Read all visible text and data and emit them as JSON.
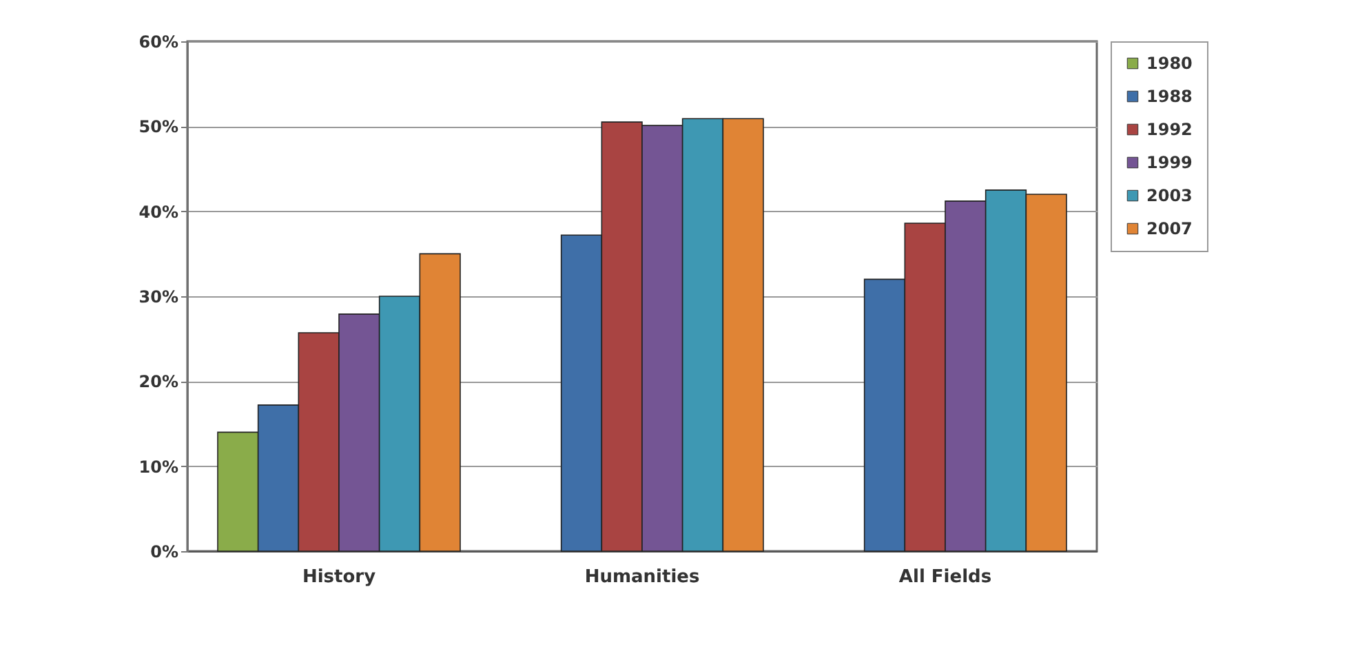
{
  "chart_data": {
    "type": "bar",
    "categories": [
      "History",
      "Humanities",
      "All Fields"
    ],
    "series": [
      {
        "name": "1980",
        "color": "#8aac4a",
        "values": [
          14,
          null,
          null
        ]
      },
      {
        "name": "1988",
        "color": "#3f6fa8",
        "values": [
          17.2,
          37.2,
          32
        ]
      },
      {
        "name": "1992",
        "color": "#a94442",
        "values": [
          25.7,
          50.5,
          38.6
        ]
      },
      {
        "name": "1999",
        "color": "#745594",
        "values": [
          27.9,
          50.1,
          41.2
        ]
      },
      {
        "name": "2003",
        "color": "#3e98b3",
        "values": [
          30,
          50.9,
          42.5
        ]
      },
      {
        "name": "2007",
        "color": "#e08435",
        "values": [
          35,
          50.9,
          42
        ]
      }
    ],
    "ylim": [
      0,
      60
    ],
    "yticks": [
      {
        "value": 0,
        "label": "0%"
      },
      {
        "value": 10,
        "label": "10%"
      },
      {
        "value": 20,
        "label": "20%"
      },
      {
        "value": 30,
        "label": "30%"
      },
      {
        "value": 40,
        "label": "40%"
      },
      {
        "value": 50,
        "label": "50%"
      },
      {
        "value": 60,
        "label": "60%"
      }
    ],
    "grid": "y",
    "legend": "right"
  }
}
